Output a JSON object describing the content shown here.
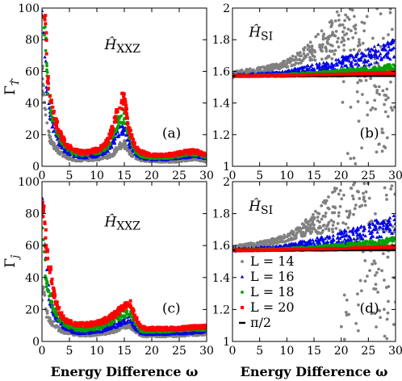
{
  "chart_data": [
    {
      "id": "a",
      "type": "scatter",
      "panel_label": "(a)",
      "annotation": "Ĥ_XXZ",
      "annotation_main": "Ĥ",
      "annotation_sub": "XXZ",
      "ylabel": "Γ_T̂",
      "ylabel_main": "Γ",
      "ylabel_sub": "T̂",
      "xlabel": "",
      "xlim": [
        0,
        30
      ],
      "ylim": [
        0,
        100
      ],
      "xticks": [
        "0",
        "5",
        "10",
        "15",
        "20",
        "25",
        "30"
      ],
      "yticks": [
        "0",
        "20",
        "40",
        "60",
        "80",
        "100"
      ],
      "series": [
        {
          "name": "L = 14",
          "color": "#808080",
          "marker": "circle",
          "x": [
            0.3,
            0.5,
            0.7,
            1,
            1.5,
            2,
            3,
            4,
            5,
            6,
            7,
            8,
            9,
            10,
            11,
            12,
            13,
            14,
            15,
            16,
            17,
            18,
            19,
            20,
            22,
            24,
            26,
            28,
            30
          ],
          "y": [
            55,
            40,
            30,
            22,
            17,
            14,
            10,
            7,
            5,
            4,
            4,
            4,
            4,
            4.5,
            5,
            6,
            8,
            13,
            14,
            9,
            5,
            4,
            3.5,
            3.5,
            3,
            3,
            4,
            5,
            3
          ]
        },
        {
          "name": "L = 16",
          "color": "#0000e6",
          "marker": "triangle",
          "x": [
            0.3,
            0.5,
            0.7,
            1,
            1.5,
            2,
            3,
            4,
            5,
            6,
            7,
            8,
            9,
            10,
            11,
            12,
            13,
            14,
            15,
            16,
            17,
            18,
            19,
            20,
            22,
            24,
            26,
            28,
            30
          ],
          "y": [
            95,
            80,
            60,
            45,
            32,
            25,
            16,
            11,
            8,
            7,
            6,
            6,
            6.5,
            7,
            8,
            10,
            15,
            22,
            24,
            14,
            8,
            6,
            5,
            4.5,
            4.5,
            5,
            6,
            7,
            5
          ]
        },
        {
          "name": "L = 18",
          "color": "#00a000",
          "marker": "circle",
          "x": [
            0.3,
            0.5,
            0.7,
            1,
            1.5,
            2,
            3,
            4,
            5,
            6,
            7,
            8,
            9,
            10,
            11,
            12,
            13,
            14,
            15,
            16,
            17,
            18,
            19,
            20,
            22,
            24,
            26,
            28,
            30
          ],
          "y": [
            100,
            92,
            75,
            55,
            40,
            30,
            20,
            14,
            10,
            8,
            7.5,
            7.5,
            8,
            9,
            10,
            13,
            20,
            30,
            32,
            18,
            10,
            7,
            6,
            5.5,
            5.5,
            6,
            7.5,
            8,
            6
          ]
        },
        {
          "name": "L = 20",
          "color": "#ff0000",
          "marker": "square",
          "x": [
            0.3,
            0.5,
            0.7,
            1,
            1.5,
            2,
            3,
            4,
            5,
            6,
            7,
            8,
            9,
            10,
            11,
            12,
            13,
            14,
            15,
            16,
            17,
            18,
            19,
            20,
            22,
            24,
            26,
            28,
            30
          ],
          "y": [
            100,
            98,
            85,
            60,
            45,
            34,
            23,
            16,
            12,
            10,
            9,
            9,
            9.5,
            10.5,
            12,
            16,
            25,
            40,
            42,
            22,
            12,
            9,
            8,
            7,
            7,
            7.5,
            9,
            9.5,
            7
          ]
        }
      ]
    },
    {
      "id": "b",
      "type": "scatter",
      "panel_label": "(b)",
      "annotation": "Ĥ_SI",
      "annotation_main": "Ĥ",
      "annotation_sub": "SI",
      "xlabel": "",
      "xlim": [
        0,
        30
      ],
      "ylim": [
        1,
        2
      ],
      "xticks": [
        "0",
        "5",
        "10",
        "15",
        "20",
        "25",
        "30"
      ],
      "yticks": [
        "1",
        "1.2",
        "1.4",
        "1.6",
        "1.8",
        "2"
      ],
      "reference_line": {
        "name": "π/2",
        "y": 1.5708,
        "color": "#000000"
      },
      "series": [
        {
          "name": "L = 14",
          "color": "#808080",
          "marker": "circle",
          "x": [
            0.5,
            2,
            4,
            6,
            8,
            10,
            12,
            14,
            16,
            18,
            20,
            22,
            24,
            26,
            28,
            30
          ],
          "y": [
            1.58,
            1.59,
            1.6,
            1.61,
            1.63,
            1.65,
            1.68,
            1.72,
            1.76,
            1.8,
            1.85,
            1.88,
            1.75,
            1.45,
            1.3,
            1.7
          ]
        },
        {
          "name": "L = 16",
          "color": "#0000e6",
          "marker": "triangle",
          "x": [
            0.5,
            2,
            4,
            6,
            8,
            10,
            12,
            14,
            16,
            18,
            20,
            22,
            24,
            26,
            28,
            30
          ],
          "y": [
            1.575,
            1.575,
            1.577,
            1.58,
            1.585,
            1.59,
            1.6,
            1.61,
            1.62,
            1.63,
            1.65,
            1.66,
            1.68,
            1.7,
            1.72,
            1.75
          ]
        },
        {
          "name": "L = 18",
          "color": "#00a000",
          "marker": "circle",
          "x": [
            0.5,
            2,
            4,
            6,
            8,
            10,
            12,
            14,
            16,
            18,
            20,
            22,
            24,
            26,
            28,
            30
          ],
          "y": [
            1.572,
            1.572,
            1.573,
            1.574,
            1.575,
            1.577,
            1.58,
            1.583,
            1.587,
            1.59,
            1.595,
            1.6,
            1.605,
            1.61,
            1.62,
            1.63
          ]
        },
        {
          "name": "L = 20",
          "color": "#ff0000",
          "marker": "square",
          "x": [
            0.5,
            2,
            4,
            6,
            8,
            10,
            12,
            14,
            16,
            18,
            20,
            22,
            24,
            26,
            28,
            30
          ],
          "y": [
            1.571,
            1.571,
            1.571,
            1.572,
            1.572,
            1.573,
            1.574,
            1.575,
            1.576,
            1.577,
            1.578,
            1.58,
            1.582,
            1.584,
            1.587,
            1.59
          ]
        }
      ]
    },
    {
      "id": "c",
      "type": "scatter",
      "panel_label": "(c)",
      "annotation": "Ĥ_XXZ",
      "annotation_main": "Ĥ",
      "annotation_sub": "XXZ",
      "ylabel": "Γ_ĵ",
      "ylabel_main": "Γ",
      "ylabel_sub": "ĵ",
      "xlabel": "Energy Difference ω",
      "xlim": [
        0,
        30
      ],
      "ylim": [
        0,
        100
      ],
      "xticks": [
        "0",
        "5",
        "10",
        "15",
        "20",
        "25",
        "30"
      ],
      "yticks": [
        "0",
        "20",
        "40",
        "60",
        "80",
        "100"
      ],
      "series": [
        {
          "name": "L = 14",
          "color": "#808080",
          "marker": "circle",
          "x": [
            0.3,
            0.5,
            0.7,
            1,
            1.5,
            2,
            3,
            4,
            5,
            6,
            7,
            8,
            9,
            10,
            11,
            12,
            13,
            14,
            15,
            16,
            17,
            18,
            19,
            20,
            22,
            24,
            26,
            28,
            30
          ],
          "y": [
            30,
            25,
            20,
            16,
            13,
            11,
            8,
            6,
            5,
            4.5,
            4,
            4,
            4,
            4.5,
            5,
            5.5,
            6.5,
            8,
            9.5,
            10,
            7,
            4,
            3.5,
            3.5,
            3.5,
            3.5,
            4,
            4.5,
            5
          ]
        },
        {
          "name": "L = 16",
          "color": "#0000e6",
          "marker": "triangle",
          "x": [
            0.3,
            0.5,
            0.7,
            1,
            1.5,
            2,
            3,
            4,
            5,
            6,
            7,
            8,
            9,
            10,
            11,
            12,
            13,
            14,
            15,
            16,
            17,
            18,
            19,
            20,
            22,
            24,
            26,
            28,
            30
          ],
          "y": [
            90,
            70,
            50,
            35,
            25,
            19,
            13,
            9,
            7,
            6,
            5.5,
            5.5,
            6,
            6.5,
            7,
            8,
            9.5,
            11,
            13,
            14,
            9,
            5.5,
            5,
            5,
            5,
            5,
            5.5,
            6,
            6.5
          ]
        },
        {
          "name": "L = 18",
          "color": "#00a000",
          "marker": "circle",
          "x": [
            0.3,
            0.5,
            0.7,
            1,
            1.5,
            2,
            3,
            4,
            5,
            6,
            7,
            8,
            9,
            10,
            11,
            12,
            13,
            14,
            15,
            16,
            17,
            18,
            19,
            20,
            22,
            24,
            26,
            28,
            30
          ],
          "y": [
            70,
            55,
            40,
            33,
            28,
            22,
            15,
            11,
            9,
            8,
            7.5,
            7.5,
            8,
            8.5,
            9.5,
            11,
            13,
            15,
            17,
            18,
            12,
            7,
            6.5,
            6.5,
            6.5,
            7,
            7.5,
            8,
            8
          ]
        },
        {
          "name": "L = 20",
          "color": "#ff0000",
          "marker": "square",
          "x": [
            0.3,
            0.5,
            0.7,
            1,
            1.5,
            2,
            3,
            4,
            5,
            6,
            7,
            8,
            9,
            10,
            11,
            12,
            13,
            14,
            15,
            16,
            17,
            18,
            19,
            20,
            22,
            24,
            26,
            28,
            30
          ],
          "y": [
            85,
            80,
            65,
            55,
            45,
            32,
            20,
            14,
            12,
            11,
            10.5,
            10.5,
            11,
            11.5,
            12.5,
            14,
            16,
            19,
            22,
            24,
            15,
            9,
            8,
            8,
            8,
            8,
            8.5,
            9,
            9.5
          ]
        }
      ]
    },
    {
      "id": "d",
      "type": "scatter",
      "panel_label": "(d)",
      "annotation": "Ĥ_SI",
      "annotation_main": "Ĥ",
      "annotation_sub": "SI",
      "xlabel": "Energy Difference ω",
      "xlim": [
        0,
        30
      ],
      "ylim": [
        1,
        2
      ],
      "xticks": [
        "0",
        "5",
        "10",
        "15",
        "20",
        "25",
        "30"
      ],
      "yticks": [
        "1",
        "1.2",
        "1.4",
        "1.6",
        "1.8",
        "2"
      ],
      "reference_line": {
        "name": "π/2",
        "y": 1.5708,
        "color": "#000000"
      },
      "legend": {
        "placement": "bottom-left",
        "entries": [
          "L = 14",
          "L = 16",
          "L = 18",
          "L = 20",
          "π/2"
        ]
      },
      "series": [
        {
          "name": "L = 14",
          "color": "#808080",
          "marker": "circle",
          "x": [
            0.5,
            2,
            4,
            6,
            8,
            10,
            12,
            14,
            16,
            18,
            20,
            22,
            24,
            26,
            28,
            30
          ],
          "y": [
            1.58,
            1.59,
            1.6,
            1.61,
            1.63,
            1.65,
            1.68,
            1.72,
            1.76,
            1.8,
            1.85,
            1.88,
            1.75,
            1.45,
            1.3,
            1.7
          ]
        },
        {
          "name": "L = 16",
          "color": "#0000e6",
          "marker": "triangle",
          "x": [
            0.5,
            2,
            4,
            6,
            8,
            10,
            12,
            14,
            16,
            18,
            20,
            22,
            24,
            26,
            28,
            30
          ],
          "y": [
            1.575,
            1.575,
            1.577,
            1.58,
            1.585,
            1.59,
            1.6,
            1.61,
            1.62,
            1.63,
            1.65,
            1.66,
            1.68,
            1.7,
            1.72,
            1.75
          ]
        },
        {
          "name": "L = 18",
          "color": "#00a000",
          "marker": "circle",
          "x": [
            0.5,
            2,
            4,
            6,
            8,
            10,
            12,
            14,
            16,
            18,
            20,
            22,
            24,
            26,
            28,
            30
          ],
          "y": [
            1.572,
            1.572,
            1.573,
            1.574,
            1.575,
            1.577,
            1.58,
            1.583,
            1.587,
            1.59,
            1.595,
            1.6,
            1.605,
            1.61,
            1.62,
            1.63
          ]
        },
        {
          "name": "L = 20",
          "color": "#ff0000",
          "marker": "square",
          "x": [
            0.5,
            2,
            4,
            6,
            8,
            10,
            12,
            14,
            16,
            18,
            20,
            22,
            24,
            26,
            28,
            30
          ],
          "y": [
            1.571,
            1.571,
            1.571,
            1.572,
            1.572,
            1.573,
            1.574,
            1.575,
            1.576,
            1.577,
            1.578,
            1.58,
            1.582,
            1.584,
            1.587,
            1.59
          ]
        }
      ]
    }
  ]
}
